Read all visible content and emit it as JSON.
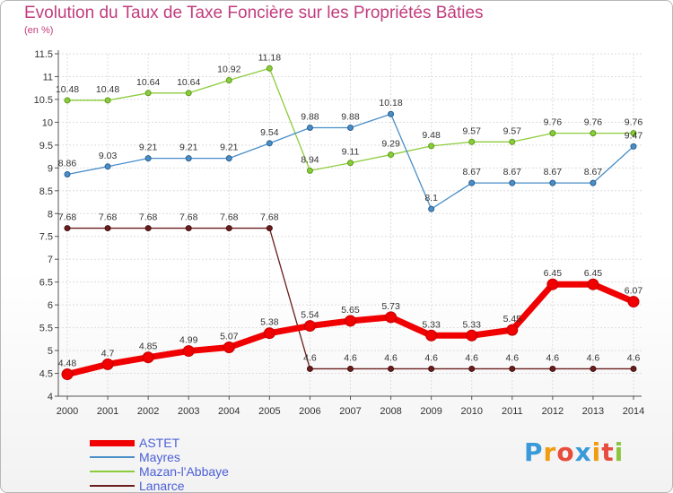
{
  "chart_data": {
    "type": "line",
    "title": "Evolution du Taux de Taxe Foncière sur les Propriétés Bâties",
    "ylabel": "(en %)",
    "xlabel": "",
    "ylim": [
      4,
      11.5
    ],
    "yticks": [
      "4",
      "4.5",
      "5",
      "5.5",
      "6",
      "6.5",
      "7",
      "7.5",
      "8",
      "8.5",
      "9",
      "9.5",
      "10",
      "10.5",
      "11",
      "11.5"
    ],
    "categories": [
      "2000",
      "2001",
      "2002",
      "2003",
      "2004",
      "2005",
      "2006",
      "2007",
      "2008",
      "2009",
      "2010",
      "2011",
      "2012",
      "2013",
      "2014"
    ],
    "series": [
      {
        "name": "ASTET",
        "color": "#f00000",
        "values": [
          4.48,
          4.7,
          4.85,
          4.99,
          5.07,
          5.38,
          5.54,
          5.65,
          5.73,
          5.33,
          5.33,
          5.45,
          6.45,
          6.45,
          6.07
        ],
        "labels": [
          "4.48",
          "4.7",
          "4.85",
          "4.99",
          "5.07",
          "5.38",
          "5.54",
          "5.65",
          "5.73",
          "5.33",
          "5.33",
          "5.45",
          "6.45",
          "6.45",
          "6.07"
        ]
      },
      {
        "name": "Mayres",
        "color": "#4a8ec8",
        "values": [
          8.86,
          9.03,
          9.21,
          9.21,
          9.21,
          9.54,
          9.88,
          9.88,
          10.18,
          8.1,
          8.67,
          8.67,
          8.67,
          8.67,
          9.47
        ],
        "labels": [
          "8.86",
          "9.03",
          "9.21",
          "9.21",
          "9.21",
          "9.54",
          "9.88",
          "9.88",
          "10.18",
          "8.1",
          "8.67",
          "8.67",
          "8.67",
          "8.67",
          "9.47"
        ]
      },
      {
        "name": "Mazan-l'Abbaye",
        "color": "#8ccc3c",
        "values": [
          10.48,
          10.48,
          10.64,
          10.64,
          10.92,
          11.18,
          8.94,
          9.11,
          9.29,
          9.48,
          9.57,
          9.57,
          9.76,
          9.76,
          9.76
        ],
        "labels": [
          "10.48",
          "10.48",
          "10.64",
          "10.64",
          "10.92",
          "11.18",
          "8.94",
          "9.11",
          "9.29",
          "9.48",
          "9.57",
          "9.57",
          "9.76",
          "9.76",
          "9.76"
        ]
      },
      {
        "name": "Lanarce",
        "color": "#6b1c1c",
        "values": [
          7.68,
          7.68,
          7.68,
          7.68,
          7.68,
          7.68,
          4.6,
          4.6,
          4.6,
          4.6,
          4.6,
          4.6,
          4.6,
          4.6,
          4.6
        ],
        "labels": [
          "7.68",
          "7.68",
          "7.68",
          "7.68",
          "7.68",
          "7.68",
          "4.6",
          "4.6",
          "4.6",
          "4.6",
          "4.6",
          "4.6",
          "4.6",
          "4.6",
          "4.6"
        ]
      }
    ]
  },
  "logo": {
    "text": "Proxiti",
    "letters": [
      "P",
      "r",
      "o",
      "x",
      "i",
      "t",
      "i"
    ],
    "colors": [
      "#3a9ad9",
      "#f39c12",
      "#e74c3c",
      "#3a9ad9",
      "#f39c12",
      "#e74c3c",
      "#8cc63f"
    ]
  }
}
